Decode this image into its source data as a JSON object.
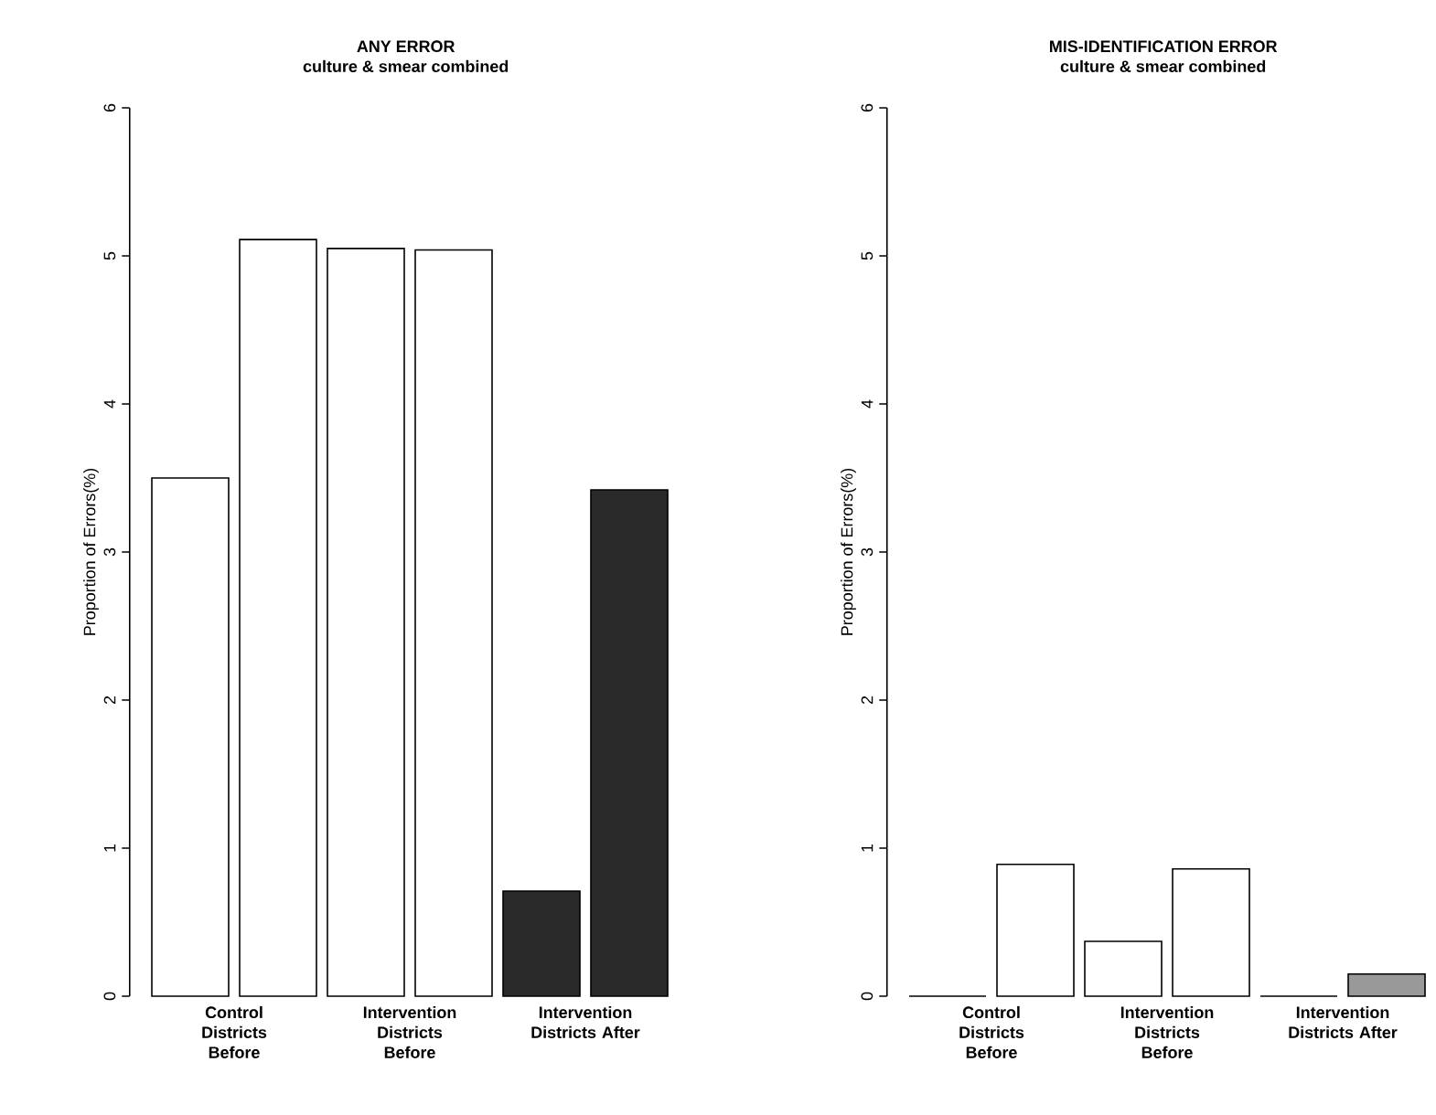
{
  "chart_data": [
    {
      "type": "bar",
      "title": "ANY ERROR",
      "subtitle": "culture & smear combined",
      "ylabel": "Proportion of Errors(%)",
      "categories": [
        "Control Districts Before",
        "Intervention Districts Before",
        "Intervention Districts After"
      ],
      "series": [
        {
          "colors": [
            "#ffffff",
            "#ffffff",
            "#2a2a2a"
          ],
          "values": [
            3.5,
            5.05,
            0.71
          ]
        },
        {
          "colors": [
            "#ffffff",
            "#ffffff",
            "#2a2a2a"
          ],
          "values": [
            5.11,
            5.04,
            3.42
          ]
        }
      ],
      "ylim": [
        0,
        6
      ],
      "yticks": [
        0,
        1,
        2,
        3,
        4,
        5,
        6
      ]
    },
    {
      "type": "bar",
      "title": "MIS-IDENTIFICATION ERROR",
      "subtitle": "culture & smear combined",
      "ylabel": "Proportion of Errors(%)",
      "categories": [
        "Control Districts Before",
        "Intervention Districts Before",
        "Intervention Districts After"
      ],
      "series": [
        {
          "colors": [
            "#ffffff",
            "#ffffff",
            "#999999"
          ],
          "values": [
            0,
            0.37,
            0
          ]
        },
        {
          "colors": [
            "#ffffff",
            "#ffffff",
            "#999999"
          ],
          "values": [
            0.89,
            0.86,
            0.15
          ]
        }
      ],
      "ylim": [
        0,
        6
      ],
      "yticks": [
        0,
        1,
        2,
        3,
        4,
        5,
        6
      ]
    }
  ]
}
